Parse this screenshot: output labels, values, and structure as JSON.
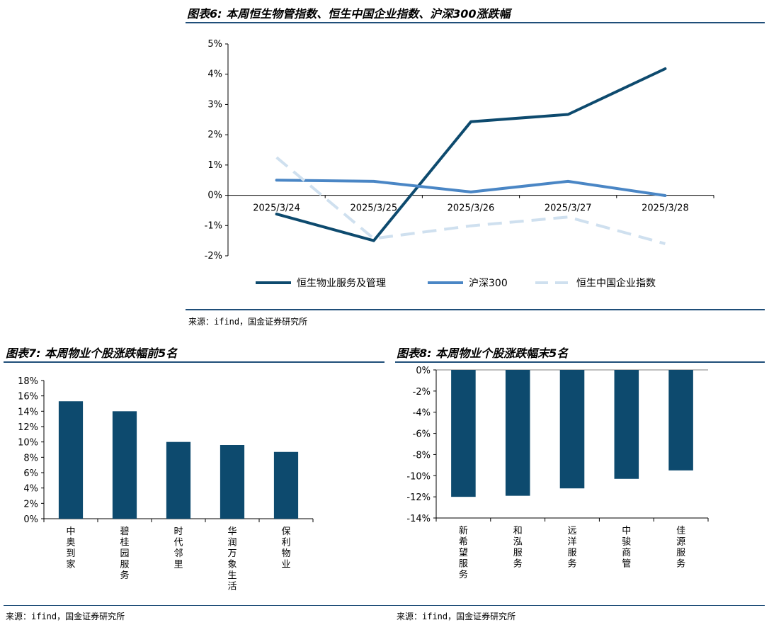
{
  "fig6": {
    "title": "图表6: 本周恒生物管指数、恒生中国企业指数、沪深300涨跌幅",
    "source": "来源：ifind，国金证券研究所",
    "chart_data": {
      "type": "line",
      "title": "图表6: 本周恒生物管指数、恒生中国企业指数、沪深300涨跌幅",
      "x": [
        "2025/3/24",
        "2025/3/25",
        "2025/3/26",
        "2025/3/27",
        "2025/3/28"
      ],
      "yticks": [
        "5%",
        "4%",
        "3%",
        "2%",
        "1%",
        "0%",
        "-1%",
        "-2%"
      ],
      "ylim": [
        -2,
        5
      ],
      "unit": "%",
      "legend_position": "bottom",
      "series": [
        {
          "name": "恒生物业服务及管理",
          "values": [
            -0.62,
            -1.5,
            2.43,
            2.67,
            4.18
          ],
          "color": "#0d4a6e",
          "style": "solid"
        },
        {
          "name": "沪深300",
          "values": [
            0.5,
            0.46,
            0.11,
            0.46,
            -0.01
          ],
          "color": "#4a86c5",
          "style": "solid"
        },
        {
          "name": "恒生中国企业指数",
          "values": [
            1.25,
            -1.43,
            -1.01,
            -0.72,
            -1.6
          ],
          "color": "#cfe0ef",
          "style": "dashed"
        }
      ]
    }
  },
  "fig7": {
    "title": "图表7: 本周物业个股涨跌幅前5名",
    "source": "来源：ifind，国金证券研究所",
    "chart_data": {
      "type": "bar",
      "title": "图表7: 本周物业个股涨跌幅前5名",
      "categories": [
        "中奥到家",
        "碧桂园服务",
        "时代邻里",
        "华润万象生活",
        "保利物业"
      ],
      "values": [
        15.3,
        14.0,
        10.0,
        9.6,
        8.7
      ],
      "yticks": [
        "18%",
        "16%",
        "14%",
        "12%",
        "10%",
        "8%",
        "6%",
        "4%",
        "2%",
        "0%"
      ],
      "ylim": [
        0,
        18
      ],
      "unit": "%",
      "color": "#0d4a6e"
    }
  },
  "fig8": {
    "title": "图表8: 本周物业个股涨跌幅末5名",
    "source": "来源：ifind，国金证券研究所",
    "chart_data": {
      "type": "bar",
      "title": "图表8: 本周物业个股涨跌幅末5名",
      "categories": [
        "新希望服务",
        "和泓服务",
        "远洋服务",
        "中骏商管",
        "佳源服务"
      ],
      "values": [
        -12.0,
        -11.9,
        -11.2,
        -10.3,
        -9.5
      ],
      "yticks": [
        "0%",
        "-2%",
        "-4%",
        "-6%",
        "-8%",
        "-10%",
        "-12%",
        "-14%"
      ],
      "ylim": [
        -14,
        0
      ],
      "unit": "%",
      "color": "#0d4a6e"
    }
  }
}
